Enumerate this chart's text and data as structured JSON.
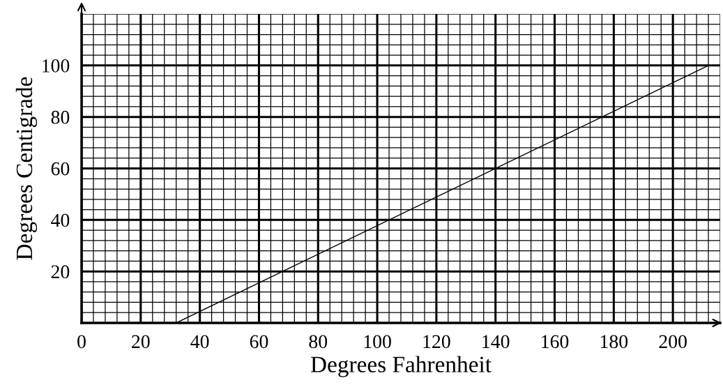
{
  "chart_data": {
    "type": "line",
    "xlabel": "Degrees Fahrenheit",
    "ylabel": "Degrees Centigrade",
    "x": [
      32,
      212
    ],
    "series": [
      {
        "color": "#000000",
        "values": [
          0,
          100
        ]
      }
    ],
    "xlim": [
      0,
      216
    ],
    "ylim": [
      0,
      120
    ],
    "xticks": [
      0,
      20,
      40,
      60,
      80,
      100,
      120,
      140,
      160,
      180,
      200
    ],
    "yticks": [
      20,
      40,
      60,
      80,
      100
    ],
    "grid": true,
    "marker": "none",
    "line_style": "solid"
  }
}
